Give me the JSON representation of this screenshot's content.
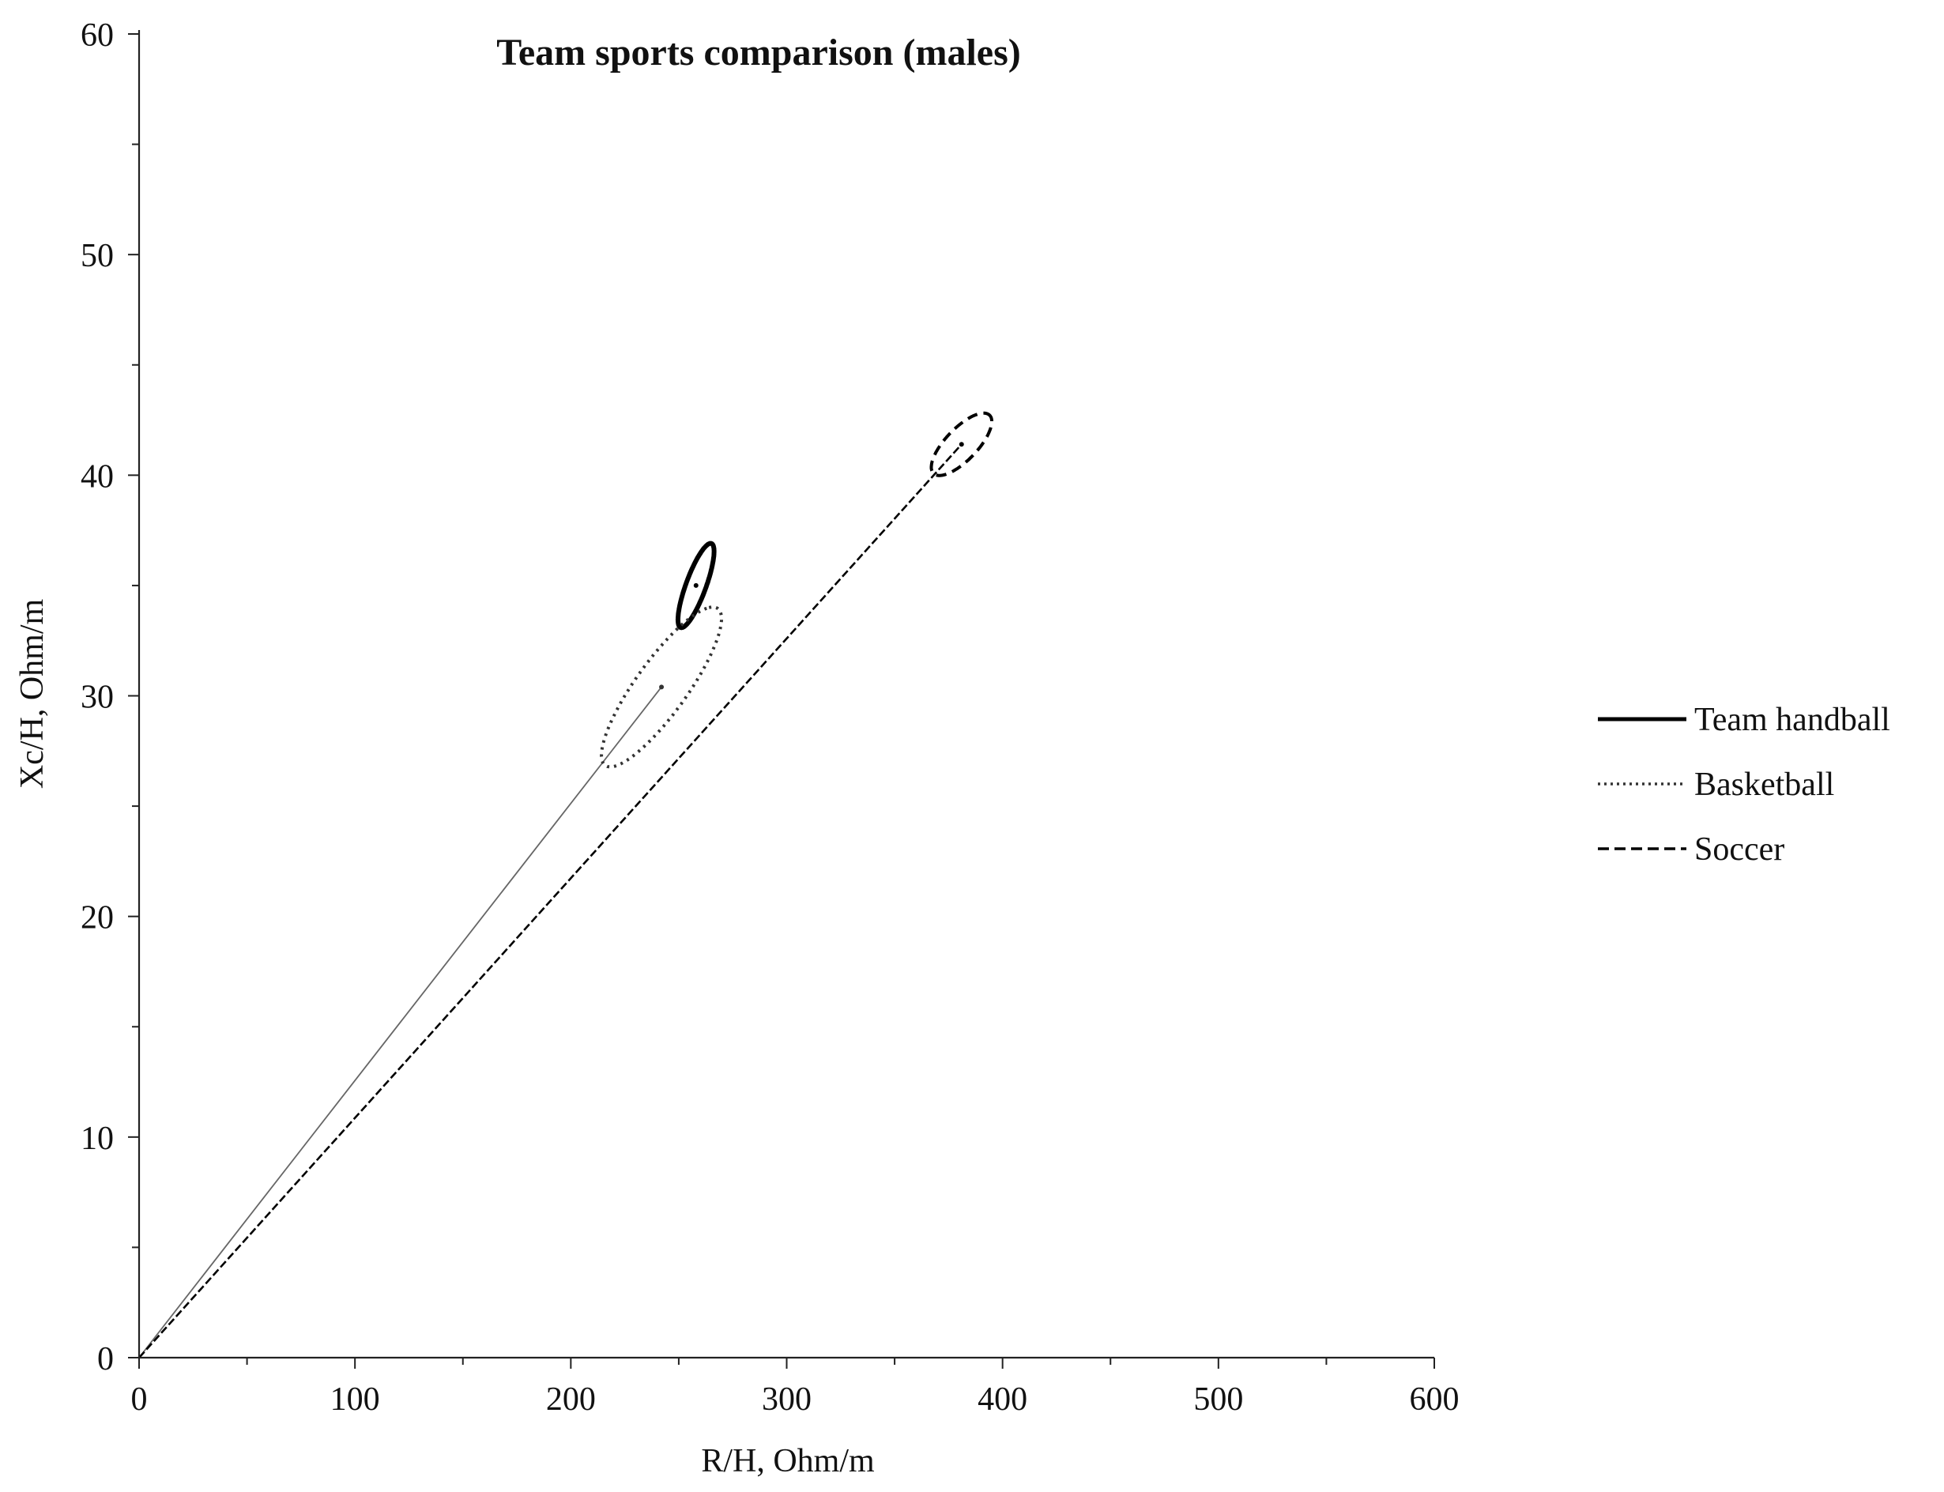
{
  "chart_data": {
    "type": "scatter",
    "title": "Team sports comparison (males)",
    "xlabel": "R/H, Ohm/m",
    "ylabel": "Xc/H, Ohm/m",
    "xlim": [
      0,
      600
    ],
    "ylim": [
      0,
      60
    ],
    "x_major_ticks": [
      0,
      100,
      200,
      300,
      400,
      500,
      600
    ],
    "x_tick_labels": [
      "0",
      "100",
      "200",
      "300",
      "400",
      "500",
      "600"
    ],
    "x_minor_ticks": [
      50,
      150,
      250,
      350,
      450,
      550
    ],
    "y_major_ticks": [
      0,
      10,
      20,
      30,
      40,
      50,
      60
    ],
    "y_tick_labels": [
      "0",
      "10",
      "20",
      "30",
      "40",
      "50",
      "60"
    ],
    "y_minor_ticks": [
      5,
      15,
      25,
      35,
      45,
      55
    ],
    "grid": false,
    "legend_position": "right",
    "series": [
      {
        "name": "Team handball",
        "line_style": "solid",
        "stroke_weight": "bold",
        "color": "#000000",
        "mean": {
          "x": 258,
          "y": 35.0
        },
        "confidence_ellipse": {
          "center": {
            "x": 258,
            "y": 35.0
          },
          "semi_axis_x": 6.2,
          "semi_axis_y": 1.9,
          "tilt_x": 5.6,
          "tilt_y": 0.2
        },
        "vector_from_origin": false
      },
      {
        "name": "Basketball",
        "line_style": "dotted",
        "stroke_weight": "normal",
        "color": "#333333",
        "mean": {
          "x": 242,
          "y": 30.4
        },
        "confidence_ellipse": {
          "center": {
            "x": 242,
            "y": 30.4
          },
          "semi_axis_x": 22,
          "semi_axis_y": 3.6,
          "tilt_x": 17,
          "tilt_y": 0.4
        },
        "vector_from_origin": true
      },
      {
        "name": "Soccer",
        "line_style": "dashed",
        "stroke_weight": "normal",
        "color": "#000000",
        "mean": {
          "x": 381,
          "y": 41.4
        },
        "confidence_ellipse": {
          "center": {
            "x": 381,
            "y": 41.4
          },
          "semi_axis_x": 11.5,
          "semi_axis_y": 1.4,
          "tilt_x": 8.0,
          "tilt_y": -0.2
        },
        "vector_from_origin": true
      }
    ]
  }
}
